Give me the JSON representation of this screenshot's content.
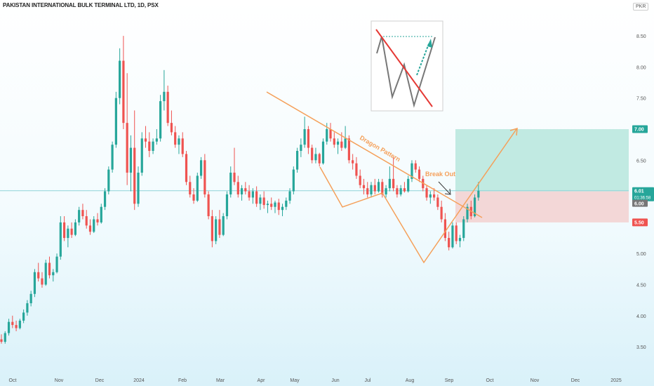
{
  "header": {
    "title": "PAKISTAN INTERNATIONAL BULK TERMINAL LTD, 1D, PSX",
    "currency": "PKR"
  },
  "colors": {
    "up": "#26a69a",
    "down": "#ef5350",
    "pattern": "#f5a05a",
    "target_zone": "#b7e6dd",
    "stop_zone": "#f3d3d3",
    "price_line": "#8fd3d8"
  },
  "annotations": {
    "pattern_label": "Dragon Pattern",
    "breakout_label": "Break Out"
  },
  "badges": {
    "target": "7.00",
    "current": "6.01",
    "countdown": "01:36:58",
    "entry": "6.00",
    "stop": "5.50"
  },
  "chart_data": {
    "type": "candlestick",
    "title": "PAKISTAN INTERNATIONAL BULK TERMINAL LTD, 1D, PSX",
    "ylim": [
      3.2,
      8.9
    ],
    "y_ticks": [
      "3.50",
      "4.00",
      "4.50",
      "5.00",
      "5.50",
      "6.00",
      "6.50",
      "7.00",
      "7.50",
      "8.00",
      "8.50"
    ],
    "x_ticks": [
      "Oct",
      "Nov",
      "Dec",
      "2024",
      "Feb",
      "Mar",
      "Apr",
      "May",
      "Jun",
      "Jul",
      "Aug",
      "Sep",
      "Oct",
      "Nov",
      "Dec",
      "2025"
    ],
    "grid": false,
    "candles": [
      {
        "o": 3.62,
        "h": 3.7,
        "l": 3.55,
        "c": 3.58
      },
      {
        "o": 3.58,
        "h": 3.75,
        "l": 3.55,
        "c": 3.72
      },
      {
        "o": 3.72,
        "h": 3.95,
        "l": 3.68,
        "c": 3.9
      },
      {
        "o": 3.9,
        "h": 4.0,
        "l": 3.8,
        "c": 3.85
      },
      {
        "o": 3.85,
        "h": 3.92,
        "l": 3.75,
        "c": 3.8
      },
      {
        "o": 3.8,
        "h": 3.95,
        "l": 3.78,
        "c": 3.92
      },
      {
        "o": 3.92,
        "h": 4.1,
        "l": 3.88,
        "c": 4.05
      },
      {
        "o": 4.05,
        "h": 4.25,
        "l": 4.0,
        "c": 4.2
      },
      {
        "o": 4.2,
        "h": 4.4,
        "l": 4.15,
        "c": 4.35
      },
      {
        "o": 4.35,
        "h": 4.75,
        "l": 4.3,
        "c": 4.7
      },
      {
        "o": 4.7,
        "h": 4.85,
        "l": 4.55,
        "c": 4.6
      },
      {
        "o": 4.6,
        "h": 4.7,
        "l": 4.45,
        "c": 4.5
      },
      {
        "o": 4.5,
        "h": 4.9,
        "l": 4.48,
        "c": 4.85
      },
      {
        "o": 4.85,
        "h": 4.95,
        "l": 4.6,
        "c": 4.65
      },
      {
        "o": 4.65,
        "h": 4.75,
        "l": 4.55,
        "c": 4.7
      },
      {
        "o": 4.7,
        "h": 5.0,
        "l": 4.68,
        "c": 4.95
      },
      {
        "o": 4.95,
        "h": 5.6,
        "l": 4.9,
        "c": 5.5
      },
      {
        "o": 5.5,
        "h": 5.6,
        "l": 5.2,
        "c": 5.25
      },
      {
        "o": 5.25,
        "h": 5.45,
        "l": 5.1,
        "c": 5.4
      },
      {
        "o": 5.4,
        "h": 5.5,
        "l": 5.25,
        "c": 5.3
      },
      {
        "o": 5.3,
        "h": 5.55,
        "l": 5.28,
        "c": 5.5
      },
      {
        "o": 5.5,
        "h": 5.75,
        "l": 5.45,
        "c": 5.7
      },
      {
        "o": 5.7,
        "h": 5.8,
        "l": 5.55,
        "c": 5.6
      },
      {
        "o": 5.6,
        "h": 5.7,
        "l": 5.4,
        "c": 5.45
      },
      {
        "o": 5.45,
        "h": 5.55,
        "l": 5.3,
        "c": 5.35
      },
      {
        "o": 5.35,
        "h": 5.6,
        "l": 5.33,
        "c": 5.55
      },
      {
        "o": 5.55,
        "h": 5.65,
        "l": 5.45,
        "c": 5.5
      },
      {
        "o": 5.5,
        "h": 5.8,
        "l": 5.48,
        "c": 5.75
      },
      {
        "o": 5.75,
        "h": 6.05,
        "l": 5.7,
        "c": 6.0
      },
      {
        "o": 6.0,
        "h": 6.4,
        "l": 5.95,
        "c": 6.35
      },
      {
        "o": 6.35,
        "h": 6.8,
        "l": 6.3,
        "c": 6.75
      },
      {
        "o": 6.75,
        "h": 7.6,
        "l": 6.7,
        "c": 7.5
      },
      {
        "o": 7.5,
        "h": 8.3,
        "l": 7.4,
        "c": 8.1
      },
      {
        "o": 8.1,
        "h": 8.5,
        "l": 7.0,
        "c": 7.1
      },
      {
        "o": 7.1,
        "h": 7.9,
        "l": 6.1,
        "c": 6.3
      },
      {
        "o": 6.3,
        "h": 6.9,
        "l": 6.0,
        "c": 6.7
      },
      {
        "o": 6.7,
        "h": 7.3,
        "l": 5.7,
        "c": 5.8
      },
      {
        "o": 5.8,
        "h": 6.4,
        "l": 5.75,
        "c": 6.3
      },
      {
        "o": 6.3,
        "h": 6.95,
        "l": 6.25,
        "c": 6.85
      },
      {
        "o": 6.85,
        "h": 7.05,
        "l": 6.7,
        "c": 6.8
      },
      {
        "o": 6.8,
        "h": 6.95,
        "l": 6.55,
        "c": 6.65
      },
      {
        "o": 6.65,
        "h": 6.85,
        "l": 6.6,
        "c": 6.8
      },
      {
        "o": 6.8,
        "h": 7.0,
        "l": 6.75,
        "c": 6.85
      },
      {
        "o": 6.85,
        "h": 7.55,
        "l": 6.8,
        "c": 7.45
      },
      {
        "o": 7.45,
        "h": 7.95,
        "l": 7.3,
        "c": 7.6
      },
      {
        "o": 7.6,
        "h": 7.7,
        "l": 7.05,
        "c": 7.1
      },
      {
        "o": 7.1,
        "h": 7.3,
        "l": 6.9,
        "c": 6.95
      },
      {
        "o": 6.95,
        "h": 7.05,
        "l": 6.7,
        "c": 6.75
      },
      {
        "o": 6.75,
        "h": 6.9,
        "l": 6.6,
        "c": 6.85
      },
      {
        "o": 6.85,
        "h": 6.95,
        "l": 6.55,
        "c": 6.6
      },
      {
        "o": 6.6,
        "h": 6.65,
        "l": 6.1,
        "c": 6.15
      },
      {
        "o": 6.15,
        "h": 6.25,
        "l": 5.9,
        "c": 5.95
      },
      {
        "o": 5.95,
        "h": 6.05,
        "l": 5.8,
        "c": 5.85
      },
      {
        "o": 5.85,
        "h": 6.3,
        "l": 5.83,
        "c": 6.25
      },
      {
        "o": 6.25,
        "h": 6.55,
        "l": 6.2,
        "c": 6.5
      },
      {
        "o": 6.5,
        "h": 6.6,
        "l": 5.9,
        "c": 5.95
      },
      {
        "o": 5.95,
        "h": 6.0,
        "l": 5.55,
        "c": 5.6
      },
      {
        "o": 5.6,
        "h": 5.7,
        "l": 5.1,
        "c": 5.2
      },
      {
        "o": 5.2,
        "h": 5.6,
        "l": 5.15,
        "c": 5.55
      },
      {
        "o": 5.55,
        "h": 5.7,
        "l": 5.25,
        "c": 5.3
      },
      {
        "o": 5.3,
        "h": 5.65,
        "l": 5.28,
        "c": 5.6
      },
      {
        "o": 5.6,
        "h": 6.0,
        "l": 5.55,
        "c": 5.95
      },
      {
        "o": 5.95,
        "h": 6.4,
        "l": 5.9,
        "c": 6.3
      },
      {
        "o": 6.3,
        "h": 6.7,
        "l": 6.1,
        "c": 6.15
      },
      {
        "o": 6.15,
        "h": 6.25,
        "l": 5.9,
        "c": 5.95
      },
      {
        "o": 5.95,
        "h": 6.1,
        "l": 5.85,
        "c": 6.05
      },
      {
        "o": 6.05,
        "h": 6.15,
        "l": 5.95,
        "c": 6.0
      },
      {
        "o": 6.0,
        "h": 6.1,
        "l": 5.85,
        "c": 5.9
      },
      {
        "o": 5.9,
        "h": 6.05,
        "l": 5.8,
        "c": 6.0
      },
      {
        "o": 6.0,
        "h": 6.08,
        "l": 5.75,
        "c": 5.8
      },
      {
        "o": 5.8,
        "h": 5.95,
        "l": 5.7,
        "c": 5.9
      },
      {
        "o": 5.9,
        "h": 6.0,
        "l": 5.72,
        "c": 5.78
      },
      {
        "o": 5.78,
        "h": 5.85,
        "l": 5.65,
        "c": 5.8
      },
      {
        "o": 5.8,
        "h": 5.9,
        "l": 5.7,
        "c": 5.75
      },
      {
        "o": 5.75,
        "h": 5.85,
        "l": 5.65,
        "c": 5.82
      },
      {
        "o": 5.82,
        "h": 5.88,
        "l": 5.62,
        "c": 5.7
      },
      {
        "o": 5.7,
        "h": 5.8,
        "l": 5.6,
        "c": 5.75
      },
      {
        "o": 5.75,
        "h": 5.9,
        "l": 5.7,
        "c": 5.85
      },
      {
        "o": 5.85,
        "h": 6.05,
        "l": 5.8,
        "c": 6.0
      },
      {
        "o": 6.0,
        "h": 6.4,
        "l": 5.95,
        "c": 6.35
      },
      {
        "o": 6.35,
        "h": 6.7,
        "l": 6.3,
        "c": 6.65
      },
      {
        "o": 6.65,
        "h": 6.85,
        "l": 6.55,
        "c": 6.75
      },
      {
        "o": 6.75,
        "h": 7.2,
        "l": 6.7,
        "c": 7.0
      },
      {
        "o": 7.0,
        "h": 7.05,
        "l": 6.6,
        "c": 6.7
      },
      {
        "o": 6.7,
        "h": 6.75,
        "l": 6.45,
        "c": 6.5
      },
      {
        "o": 6.5,
        "h": 6.7,
        "l": 6.45,
        "c": 6.6
      },
      {
        "o": 6.6,
        "h": 6.62,
        "l": 6.4,
        "c": 6.45
      },
      {
        "o": 6.45,
        "h": 6.85,
        "l": 6.43,
        "c": 6.8
      },
      {
        "o": 6.8,
        "h": 7.1,
        "l": 6.75,
        "c": 7.0
      },
      {
        "o": 7.0,
        "h": 7.1,
        "l": 6.8,
        "c": 6.85
      },
      {
        "o": 6.85,
        "h": 6.95,
        "l": 6.7,
        "c": 6.75
      },
      {
        "o": 6.75,
        "h": 6.85,
        "l": 6.6,
        "c": 6.8
      },
      {
        "o": 6.8,
        "h": 6.95,
        "l": 6.65,
        "c": 6.7
      },
      {
        "o": 6.7,
        "h": 7.05,
        "l": 6.68,
        "c": 6.85
      },
      {
        "o": 6.85,
        "h": 6.9,
        "l": 6.45,
        "c": 6.5
      },
      {
        "o": 6.5,
        "h": 6.6,
        "l": 6.35,
        "c": 6.45
      },
      {
        "o": 6.45,
        "h": 6.55,
        "l": 6.2,
        "c": 6.25
      },
      {
        "o": 6.25,
        "h": 6.35,
        "l": 6.05,
        "c": 6.1
      },
      {
        "o": 6.1,
        "h": 6.2,
        "l": 5.95,
        "c": 6.05
      },
      {
        "o": 6.05,
        "h": 6.15,
        "l": 5.9,
        "c": 5.95
      },
      {
        "o": 5.95,
        "h": 6.15,
        "l": 5.9,
        "c": 6.1
      },
      {
        "o": 6.1,
        "h": 6.2,
        "l": 5.95,
        "c": 6.0
      },
      {
        "o": 6.0,
        "h": 6.2,
        "l": 5.98,
        "c": 6.15
      },
      {
        "o": 6.15,
        "h": 6.2,
        "l": 5.9,
        "c": 5.95
      },
      {
        "o": 5.95,
        "h": 6.1,
        "l": 5.9,
        "c": 6.05
      },
      {
        "o": 6.05,
        "h": 6.4,
        "l": 6.0,
        "c": 6.2
      },
      {
        "o": 6.2,
        "h": 6.55,
        "l": 6.0,
        "c": 6.05
      },
      {
        "o": 6.05,
        "h": 6.1,
        "l": 5.9,
        "c": 5.95
      },
      {
        "o": 5.95,
        "h": 6.1,
        "l": 5.92,
        "c": 6.05
      },
      {
        "o": 6.05,
        "h": 6.15,
        "l": 5.98,
        "c": 6.0
      },
      {
        "o": 6.0,
        "h": 6.25,
        "l": 5.98,
        "c": 6.2
      },
      {
        "o": 6.2,
        "h": 6.5,
        "l": 6.15,
        "c": 6.45
      },
      {
        "o": 6.45,
        "h": 6.5,
        "l": 6.3,
        "c": 6.35
      },
      {
        "o": 6.35,
        "h": 6.4,
        "l": 6.15,
        "c": 6.2
      },
      {
        "o": 6.2,
        "h": 6.25,
        "l": 6.0,
        "c": 6.05
      },
      {
        "o": 6.05,
        "h": 6.1,
        "l": 5.85,
        "c": 5.9
      },
      {
        "o": 5.9,
        "h": 6.0,
        "l": 5.8,
        "c": 5.95
      },
      {
        "o": 5.95,
        "h": 6.05,
        "l": 5.85,
        "c": 5.9
      },
      {
        "o": 5.9,
        "h": 5.95,
        "l": 5.7,
        "c": 5.75
      },
      {
        "o": 5.75,
        "h": 5.85,
        "l": 5.5,
        "c": 5.55
      },
      {
        "o": 5.55,
        "h": 5.65,
        "l": 5.2,
        "c": 5.25
      },
      {
        "o": 5.25,
        "h": 5.35,
        "l": 5.05,
        "c": 5.1
      },
      {
        "o": 5.1,
        "h": 5.5,
        "l": 5.08,
        "c": 5.45
      },
      {
        "o": 5.45,
        "h": 5.5,
        "l": 5.15,
        "c": 5.2
      },
      {
        "o": 5.2,
        "h": 5.3,
        "l": 5.1,
        "c": 5.25
      },
      {
        "o": 5.25,
        "h": 5.6,
        "l": 5.2,
        "c": 5.55
      },
      {
        "o": 5.55,
        "h": 5.8,
        "l": 5.5,
        "c": 5.75
      },
      {
        "o": 5.75,
        "h": 5.85,
        "l": 5.55,
        "c": 5.6
      },
      {
        "o": 5.6,
        "h": 5.95,
        "l": 5.58,
        "c": 5.9
      },
      {
        "o": 5.9,
        "h": 6.15,
        "l": 5.85,
        "c": 6.01
      }
    ]
  }
}
